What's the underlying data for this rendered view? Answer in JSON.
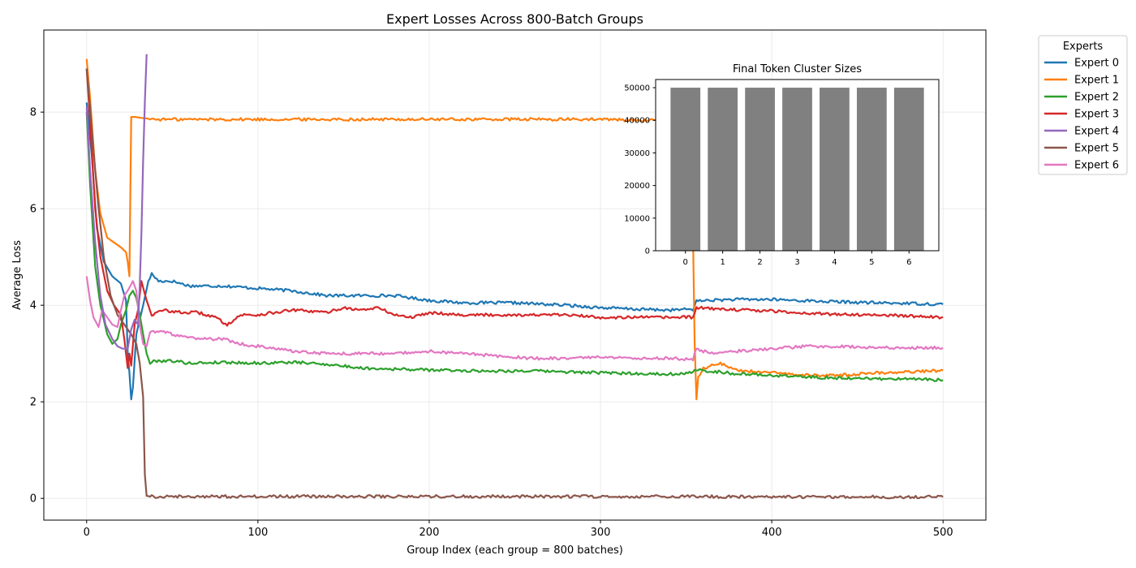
{
  "chart_data": [
    {
      "type": "line",
      "title": "Expert Losses Across 800-Batch Groups",
      "xlabel": "Group Index (each group = 800 batches)",
      "ylabel": "Average Loss",
      "xlim": [
        -25,
        525
      ],
      "ylim": [
        -0.45,
        9.7
      ],
      "xticks": [
        0,
        100,
        200,
        300,
        400,
        500
      ],
      "yticks": [
        0,
        2,
        4,
        6,
        8
      ],
      "grid": true,
      "legend": {
        "title": "Experts",
        "placement": "outside-top-right"
      },
      "series": [
        {
          "name": "Expert 0",
          "color": "#1f77b4",
          "points": [
            [
              0,
              8.2
            ],
            [
              3,
              7.1
            ],
            [
              6,
              5.6
            ],
            [
              10,
              4.9
            ],
            [
              15,
              4.6
            ],
            [
              20,
              4.45
            ],
            [
              23,
              4.1
            ],
            [
              24,
              3.0
            ],
            [
              25,
              2.6
            ],
            [
              26,
              2.05
            ],
            [
              27,
              2.3
            ],
            [
              29,
              3.4
            ],
            [
              31,
              3.7
            ],
            [
              33,
              4.0
            ],
            [
              36,
              4.5
            ],
            [
              38,
              4.65
            ],
            [
              42,
              4.5
            ],
            [
              50,
              4.5
            ],
            [
              60,
              4.4
            ],
            [
              80,
              4.4
            ],
            [
              100,
              4.35
            ],
            [
              120,
              4.3
            ],
            [
              140,
              4.2
            ],
            [
              160,
              4.2
            ],
            [
              180,
              4.2
            ],
            [
              200,
              4.1
            ],
            [
              220,
              4.05
            ],
            [
              250,
              4.05
            ],
            [
              280,
              4.0
            ],
            [
              300,
              3.95
            ],
            [
              320,
              3.92
            ],
            [
              340,
              3.9
            ],
            [
              354,
              3.92
            ],
            [
              356,
              4.08
            ],
            [
              360,
              4.1
            ],
            [
              380,
              4.12
            ],
            [
              400,
              4.12
            ],
            [
              430,
              4.08
            ],
            [
              460,
              4.05
            ],
            [
              480,
              4.04
            ],
            [
              500,
              4.02
            ]
          ]
        },
        {
          "name": "Expert 1",
          "color": "#ff7f0e",
          "points": [
            [
              0,
              9.1
            ],
            [
              2,
              8.3
            ],
            [
              5,
              6.8
            ],
            [
              8,
              5.9
            ],
            [
              12,
              5.4
            ],
            [
              16,
              5.3
            ],
            [
              20,
              5.2
            ],
            [
              23,
              5.1
            ],
            [
              24,
              4.9
            ],
            [
              25,
              4.6
            ],
            [
              26,
              7.9
            ],
            [
              28,
              7.9
            ],
            [
              32,
              7.88
            ],
            [
              40,
              7.85
            ],
            [
              60,
              7.85
            ],
            [
              100,
              7.85
            ],
            [
              150,
              7.85
            ],
            [
              200,
              7.85
            ],
            [
              250,
              7.85
            ],
            [
              300,
              7.85
            ],
            [
              340,
              7.82
            ],
            [
              352,
              7.6
            ],
            [
              354,
              5.5
            ],
            [
              355,
              3.2
            ],
            [
              356,
              2.05
            ],
            [
              357,
              2.5
            ],
            [
              360,
              2.7
            ],
            [
              365,
              2.75
            ],
            [
              370,
              2.8
            ],
            [
              380,
              2.65
            ],
            [
              400,
              2.6
            ],
            [
              420,
              2.55
            ],
            [
              440,
              2.55
            ],
            [
              460,
              2.6
            ],
            [
              480,
              2.62
            ],
            [
              500,
              2.65
            ]
          ]
        },
        {
          "name": "Expert 2",
          "color": "#2ca02c",
          "points": [
            [
              0,
              8.0
            ],
            [
              2,
              6.5
            ],
            [
              5,
              4.8
            ],
            [
              8,
              4.0
            ],
            [
              12,
              3.4
            ],
            [
              15,
              3.2
            ],
            [
              18,
              3.3
            ],
            [
              20,
              3.6
            ],
            [
              23,
              3.9
            ],
            [
              25,
              4.2
            ],
            [
              27,
              4.3
            ],
            [
              29,
              4.15
            ],
            [
              31,
              3.8
            ],
            [
              33,
              3.4
            ],
            [
              35,
              3.0
            ],
            [
              37,
              2.8
            ],
            [
              40,
              2.85
            ],
            [
              50,
              2.85
            ],
            [
              60,
              2.8
            ],
            [
              80,
              2.82
            ],
            [
              100,
              2.8
            ],
            [
              120,
              2.82
            ],
            [
              140,
              2.78
            ],
            [
              160,
              2.7
            ],
            [
              180,
              2.68
            ],
            [
              200,
              2.66
            ],
            [
              230,
              2.64
            ],
            [
              260,
              2.64
            ],
            [
              280,
              2.62
            ],
            [
              300,
              2.6
            ],
            [
              330,
              2.58
            ],
            [
              350,
              2.58
            ],
            [
              356,
              2.65
            ],
            [
              360,
              2.65
            ],
            [
              380,
              2.58
            ],
            [
              400,
              2.55
            ],
            [
              430,
              2.5
            ],
            [
              460,
              2.48
            ],
            [
              480,
              2.47
            ],
            [
              500,
              2.45
            ]
          ]
        },
        {
          "name": "Expert 3",
          "color": "#d62728",
          "points": [
            [
              0,
              8.9
            ],
            [
              2,
              7.8
            ],
            [
              5,
              6.0
            ],
            [
              8,
              5.0
            ],
            [
              12,
              4.3
            ],
            [
              16,
              4.0
            ],
            [
              20,
              3.8
            ],
            [
              22,
              3.3
            ],
            [
              24,
              2.7
            ],
            [
              25,
              3.0
            ],
            [
              26,
              2.75
            ],
            [
              28,
              3.6
            ],
            [
              30,
              3.9
            ],
            [
              32,
              4.5
            ],
            [
              35,
              4.1
            ],
            [
              38,
              3.8
            ],
            [
              45,
              3.9
            ],
            [
              55,
              3.85
            ],
            [
              65,
              3.85
            ],
            [
              75,
              3.75
            ],
            [
              82,
              3.6
            ],
            [
              90,
              3.8
            ],
            [
              100,
              3.8
            ],
            [
              110,
              3.85
            ],
            [
              120,
              3.9
            ],
            [
              140,
              3.85
            ],
            [
              150,
              3.95
            ],
            [
              160,
              3.9
            ],
            [
              170,
              3.95
            ],
            [
              180,
              3.8
            ],
            [
              190,
              3.75
            ],
            [
              200,
              3.85
            ],
            [
              220,
              3.8
            ],
            [
              250,
              3.8
            ],
            [
              280,
              3.8
            ],
            [
              300,
              3.75
            ],
            [
              320,
              3.75
            ],
            [
              340,
              3.75
            ],
            [
              354,
              3.75
            ],
            [
              356,
              3.95
            ],
            [
              370,
              3.92
            ],
            [
              400,
              3.88
            ],
            [
              430,
              3.82
            ],
            [
              460,
              3.8
            ],
            [
              480,
              3.78
            ],
            [
              500,
              3.75
            ]
          ]
        },
        {
          "name": "Expert 4",
          "color": "#9467bd",
          "points": [
            [
              0,
              8.1
            ],
            [
              2,
              6.8
            ],
            [
              5,
              5.3
            ],
            [
              8,
              4.2
            ],
            [
              11,
              3.6
            ],
            [
              15,
              3.3
            ],
            [
              18,
              3.15
            ],
            [
              21,
              3.1
            ],
            [
              24,
              3.1
            ],
            [
              26,
              3.5
            ],
            [
              28,
              3.7
            ],
            [
              30,
              3.6
            ],
            [
              31,
              4.4
            ],
            [
              32,
              5.5
            ],
            [
              33,
              7.0
            ],
            [
              34,
              8.2
            ],
            [
              35,
              9.2
            ]
          ]
        },
        {
          "name": "Expert 5",
          "color": "#8c564b",
          "points": [
            [
              0,
              8.9
            ],
            [
              2,
              8.1
            ],
            [
              4,
              7.2
            ],
            [
              7,
              6.0
            ],
            [
              10,
              5.0
            ],
            [
              14,
              4.2
            ],
            [
              18,
              3.8
            ],
            [
              22,
              3.6
            ],
            [
              26,
              3.4
            ],
            [
              29,
              3.2
            ],
            [
              31,
              2.8
            ],
            [
              33,
              2.1
            ],
            [
              34,
              0.5
            ],
            [
              35,
              0.05
            ],
            [
              40,
              0.04
            ],
            [
              60,
              0.04
            ],
            [
              100,
              0.04
            ],
            [
              150,
              0.04
            ],
            [
              200,
              0.04
            ],
            [
              250,
              0.04
            ],
            [
              300,
              0.04
            ],
            [
              350,
              0.04
            ],
            [
              400,
              0.03
            ],
            [
              450,
              0.03
            ],
            [
              500,
              0.03
            ]
          ]
        },
        {
          "name": "Expert 6",
          "color": "#e377c2",
          "points": [
            [
              0,
              4.6
            ],
            [
              2,
              4.1
            ],
            [
              4,
              3.75
            ],
            [
              7,
              3.55
            ],
            [
              9,
              3.9
            ],
            [
              12,
              3.75
            ],
            [
              15,
              3.6
            ],
            [
              18,
              3.55
            ],
            [
              20,
              3.9
            ],
            [
              22,
              4.2
            ],
            [
              24,
              4.3
            ],
            [
              27,
              4.5
            ],
            [
              29,
              4.3
            ],
            [
              31,
              3.6
            ],
            [
              33,
              3.2
            ],
            [
              35,
              3.15
            ],
            [
              37,
              3.45
            ],
            [
              45,
              3.45
            ],
            [
              55,
              3.35
            ],
            [
              65,
              3.3
            ],
            [
              80,
              3.3
            ],
            [
              90,
              3.2
            ],
            [
              100,
              3.15
            ],
            [
              110,
              3.1
            ],
            [
              120,
              3.05
            ],
            [
              140,
              3.0
            ],
            [
              160,
              3.0
            ],
            [
              180,
              3.0
            ],
            [
              200,
              3.05
            ],
            [
              220,
              3.0
            ],
            [
              240,
              2.95
            ],
            [
              260,
              2.9
            ],
            [
              280,
              2.9
            ],
            [
              300,
              2.92
            ],
            [
              320,
              2.9
            ],
            [
              340,
              2.9
            ],
            [
              354,
              2.88
            ],
            [
              356,
              3.1
            ],
            [
              360,
              3.05
            ],
            [
              370,
              3.0
            ],
            [
              380,
              3.05
            ],
            [
              400,
              3.1
            ],
            [
              420,
              3.15
            ],
            [
              440,
              3.15
            ],
            [
              460,
              3.12
            ],
            [
              480,
              3.12
            ],
            [
              500,
              3.12
            ]
          ]
        }
      ]
    },
    {
      "type": "bar",
      "title": "Final Token Cluster Sizes",
      "categories": [
        "0",
        "1",
        "2",
        "3",
        "4",
        "5",
        "6"
      ],
      "values": [
        50000,
        50000,
        50000,
        50000,
        50000,
        50000,
        50000
      ],
      "ylim": [
        0,
        52500
      ],
      "yticks": [
        0,
        10000,
        20000,
        30000,
        40000,
        50000
      ],
      "bar_color": "#808080",
      "grid": false
    }
  ]
}
